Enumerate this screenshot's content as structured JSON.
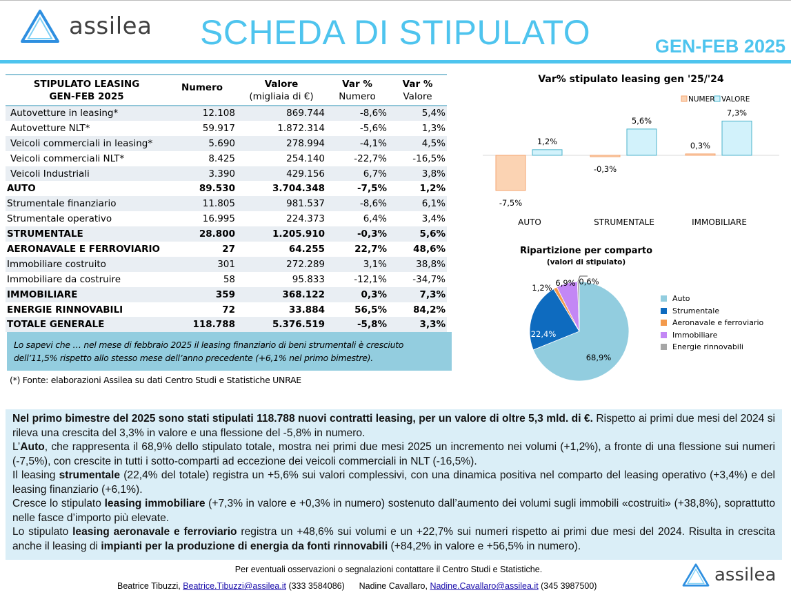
{
  "header": {
    "logo_text": "assilea",
    "title": "SCHEDA DI STIPULATO",
    "period": "GEN-FEB 2025"
  },
  "table": {
    "headers": {
      "col1_line1": "STIPULATO LEASING",
      "col1_line2": "GEN-FEB 2025",
      "numero": "Numero",
      "valore": "Valore",
      "valore_sub": "(migliaia di €)",
      "varn": "Var %",
      "varn_sub": "Numero",
      "varv": "Var %",
      "varv_sub": "Valore"
    },
    "rows": [
      {
        "label": "Autovetture in leasing*",
        "numero": "12.108",
        "valore": "869.744",
        "var_numero": "-8,6%",
        "var_valore": "5,4%",
        "bold": false,
        "indent": true
      },
      {
        "label": "Autovetture NLT*",
        "numero": "59.917",
        "valore": "1.872.314",
        "var_numero": "-5,6%",
        "var_valore": "1,3%",
        "bold": false,
        "indent": true
      },
      {
        "label": "Veicoli commerciali in leasing*",
        "numero": "5.690",
        "valore": "278.994",
        "var_numero": "-4,1%",
        "var_valore": "4,5%",
        "bold": false,
        "indent": true
      },
      {
        "label": "Veicoli commerciali NLT*",
        "numero": "8.425",
        "valore": "254.140",
        "var_numero": "-22,7%",
        "var_valore": "-16,5%",
        "bold": false,
        "indent": true
      },
      {
        "label": "Veicoli Industriali",
        "numero": "3.390",
        "valore": "429.156",
        "var_numero": "6,7%",
        "var_valore": "3,8%",
        "bold": false,
        "indent": true
      },
      {
        "label": "AUTO",
        "numero": "89.530",
        "valore": "3.704.348",
        "var_numero": "-7,5%",
        "var_valore": "1,2%",
        "bold": true
      },
      {
        "label": "Strumentale finanziario",
        "numero": "11.805",
        "valore": "981.537",
        "var_numero": "-8,6%",
        "var_valore": "6,1%",
        "bold": false
      },
      {
        "label": "Strumentale operativo",
        "numero": "16.995",
        "valore": "224.373",
        "var_numero": "6,4%",
        "var_valore": "3,4%",
        "bold": false
      },
      {
        "label": "STRUMENTALE",
        "numero": "28.800",
        "valore": "1.205.910",
        "var_numero": "-0,3%",
        "var_valore": "5,6%",
        "bold": true
      },
      {
        "label": "AERONAVALE E FERROVIARIO",
        "numero": "27",
        "valore": "64.255",
        "var_numero": "22,7%",
        "var_valore": "48,6%",
        "bold": true
      },
      {
        "label": "Immobiliare costruito",
        "numero": "301",
        "valore": "272.289",
        "var_numero": "3,1%",
        "var_valore": "38,8%",
        "bold": false
      },
      {
        "label": "Immobiliare da costruire",
        "numero": "58",
        "valore": "95.833",
        "var_numero": "-12,1%",
        "var_valore": "-34,7%",
        "bold": false
      },
      {
        "label": "IMMOBILIARE",
        "numero": "359",
        "valore": "368.122",
        "var_numero": "0,3%",
        "var_valore": "7,3%",
        "bold": true
      },
      {
        "label": "ENERGIE RINNOVABILI",
        "numero": "72",
        "valore": "33.884",
        "var_numero": "56,5%",
        "var_valore": "84,2%",
        "bold": true
      },
      {
        "label": "TOTALE GENERALE",
        "numero": "118.788",
        "valore": "5.376.519",
        "var_numero": "-5,8%",
        "var_valore": "3,3%",
        "bold": true
      }
    ]
  },
  "note": "Lo sapevi che … nel mese di febbraio 2025 il leasing finanziario di beni strumentali è cresciuto dell’11,5% rispetto allo stesso mese dell’anno precedente (+6,1% nel primo bimestre).",
  "source": "(*) Fonte: elaborazioni Assilea su dati Centro Studi e Statistiche UNRAE",
  "chart_data": [
    {
      "type": "bar",
      "title": "Var% stipulato leasing gen '25/'24",
      "categories": [
        "AUTO",
        "STRUMENTALE",
        "IMMOBILIARE"
      ],
      "series": [
        {
          "name": "NUMERO",
          "values": [
            -7.5,
            -0.3,
            0.3
          ],
          "labels": [
            "-7,5%",
            "-0,3%",
            "0,3%"
          ],
          "color": "#fbd3b3",
          "stroke": "#f4a570"
        },
        {
          "name": "VALORE",
          "values": [
            1.2,
            5.6,
            7.3
          ],
          "labels": [
            "1,2%",
            "5,6%",
            "7,3%"
          ],
          "color": "#d2f2fb",
          "stroke": "#4bb3cb"
        }
      ],
      "legend": "top-right",
      "grid": false
    },
    {
      "type": "pie",
      "title": "Ripartizione per comparto",
      "subtitle": "(valori di stipulato)",
      "categories": [
        "Auto",
        "Strumentale",
        "Aeronavale e ferroviario",
        "Immobiliare",
        "Energie rinnovabili"
      ],
      "values": [
        68.9,
        22.4,
        1.2,
        6.9,
        0.6
      ],
      "labels": [
        "68,9%",
        "22,4%",
        "1,2%",
        "6,9%",
        "0,6%"
      ],
      "colors": [
        "#92cddf",
        "#0e6bbf",
        "#f39a4c",
        "#c387f5",
        "#a6a6a6"
      ],
      "legend": "right"
    }
  ],
  "summary": [
    [
      {
        "t": "Nel primo bimestre del 2025 sono stati stipulati 118.788 nuovi contratti leasing, per un valore di oltre 5,3 mld. di €.",
        "b": true
      },
      {
        "t": " Rispetto ai primi due mesi del 2024 si rileva una crescita del 3,3% in valore e una flessione del -5,8% in numero.",
        "b": false
      }
    ],
    [
      {
        "t": "L’",
        "b": false
      },
      {
        "t": "Auto",
        "b": true
      },
      {
        "t": ", che rappresenta il 68,9% dello stipulato totale, mostra nei primi due mesi 2025 un incremento nei volumi (+1,2%), a fronte di una flessione sui numeri (-7,5%), con crescite in tutti i sotto-comparti ad eccezione dei veicoli commerciali in NLT (-16,5%).",
        "b": false
      }
    ],
    [
      {
        "t": "Il leasing ",
        "b": false
      },
      {
        "t": "strumentale",
        "b": true
      },
      {
        "t": " (22,4% del totale) registra un +5,6% sui valori complessivi, con una dinamica positiva nel comparto del leasing operativo (+3,4%) e del leasing finanziario (+6,1%).",
        "b": false
      }
    ],
    [
      {
        "t": "Cresce lo stipulato ",
        "b": false
      },
      {
        "t": "leasing immobiliare",
        "b": true
      },
      {
        "t": " (+7,3% in valore e +0,3% in numero) sostenuto dall’aumento dei volumi sugli immobili «costruiti» (+38,8%), soprattutto nelle fasce d’importo più elevate.",
        "b": false
      }
    ],
    [
      {
        "t": "Lo stipulato ",
        "b": false
      },
      {
        "t": "leasing aeronavale e ferroviario",
        "b": true
      },
      {
        "t": " registra un +48,6% sui volumi e un +22,7% sui numeri rispetto ai primi due mesi del 2024. Risulta in crescita anche il leasing di ",
        "b": false
      },
      {
        "t": "impianti per la produzione di energia da fonti rinnovabili",
        "b": true
      },
      {
        "t": " (+84,2% in valore e +56,5% in numero).",
        "b": false
      }
    ]
  ],
  "footer": {
    "line1": "Per eventuali osservazioni o segnalazioni contattare il Centro Studi e Statistiche.",
    "contact1_name": "Beatrice Tibuzzi, ",
    "contact1_email": "Beatrice.Tibuzzi@assilea.it",
    "contact1_phone": " (333 3584086)      ",
    "contact2_name": "Nadine Cavallaro, ",
    "contact2_email": "Nadine.Cavallaro@assilea.it",
    "contact2_phone": " (345 3987500)",
    "logo_text": "assilea"
  }
}
